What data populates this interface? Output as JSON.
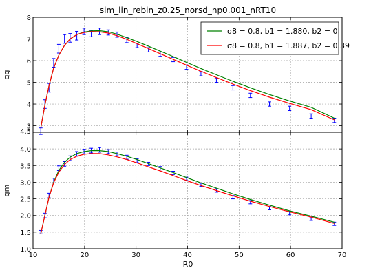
{
  "chart_data": {
    "type": "line",
    "title": "sim_lin_rebin_z0.25_norsd_np0.001_nRT10",
    "xlabel": "R0",
    "xlim": [
      10,
      70
    ],
    "x_ticks": [
      "10",
      "20",
      "30",
      "40",
      "50",
      "60",
      "70"
    ],
    "legend": {
      "placement": "top-right",
      "entries": [
        {
          "label": "σ8 = 0.8, b1 = 1.880, b2 = 0",
          "color": "#008000"
        },
        {
          "label": "σ8 = 0.8, b1 = 1.887, b2 = 0.39",
          "color": "#ff0000"
        }
      ]
    },
    "panels": [
      {
        "ylabel": "gg",
        "ylim": [
          2.7,
          8
        ],
        "y_ticks": [
          "3",
          "4",
          "5",
          "6",
          "7",
          "8"
        ],
        "grid": true,
        "errorbar_color": "#0000ff",
        "errorbars": [
          {
            "x": 11.5,
            "y": 2.75,
            "e": 0.15
          },
          {
            "x": 12.3,
            "y": 4.0,
            "e": 0.2
          },
          {
            "x": 13.1,
            "y": 4.75,
            "e": 0.2
          },
          {
            "x": 14.0,
            "y": 5.9,
            "e": 0.2
          },
          {
            "x": 15.0,
            "y": 6.55,
            "e": 0.2
          },
          {
            "x": 16.1,
            "y": 7.0,
            "e": 0.2
          },
          {
            "x": 17.2,
            "y": 7.05,
            "e": 0.2
          },
          {
            "x": 18.5,
            "y": 7.15,
            "e": 0.2
          },
          {
            "x": 19.9,
            "y": 7.35,
            "e": 0.15
          },
          {
            "x": 21.3,
            "y": 7.25,
            "e": 0.15
          },
          {
            "x": 22.9,
            "y": 7.35,
            "e": 0.15
          },
          {
            "x": 24.6,
            "y": 7.3,
            "e": 0.12
          },
          {
            "x": 26.3,
            "y": 7.2,
            "e": 0.12
          },
          {
            "x": 28.2,
            "y": 6.95,
            "e": 0.12
          },
          {
            "x": 30.2,
            "y": 6.7,
            "e": 0.1
          },
          {
            "x": 32.4,
            "y": 6.5,
            "e": 0.1
          },
          {
            "x": 34.7,
            "y": 6.3,
            "e": 0.1
          },
          {
            "x": 37.2,
            "y": 6.05,
            "e": 0.1
          },
          {
            "x": 39.8,
            "y": 5.7,
            "e": 0.1
          },
          {
            "x": 42.6,
            "y": 5.4,
            "e": 0.1
          },
          {
            "x": 45.6,
            "y": 5.1,
            "e": 0.1
          },
          {
            "x": 48.8,
            "y": 4.75,
            "e": 0.1
          },
          {
            "x": 52.2,
            "y": 4.4,
            "e": 0.1
          },
          {
            "x": 55.9,
            "y": 4.0,
            "e": 0.1
          },
          {
            "x": 59.8,
            "y": 3.8,
            "e": 0.1
          },
          {
            "x": 64.0,
            "y": 3.45,
            "e": 0.1
          },
          {
            "x": 68.5,
            "y": 3.25,
            "e": 0.1
          }
        ],
        "series": [
          {
            "color": "#008000",
            "x": [
              11.5,
              12.3,
              13.1,
              14.0,
              15.0,
              16.1,
              17.2,
              18.5,
              19.9,
              21.3,
              22.9,
              24.6,
              26.3,
              28.2,
              30.2,
              32.4,
              34.7,
              37.2,
              39.8,
              42.6,
              45.6,
              48.8,
              52.2,
              55.9,
              59.8,
              64.0,
              68.5
            ],
            "y": [
              2.9,
              3.95,
              4.85,
              5.65,
              6.25,
              6.7,
              7.0,
              7.2,
              7.32,
              7.37,
              7.38,
              7.33,
              7.22,
              7.06,
              6.88,
              6.67,
              6.44,
              6.19,
              5.92,
              5.64,
              5.35,
              5.05,
              4.75,
              4.44,
              4.14,
              3.85,
              3.35
            ]
          },
          {
            "color": "#ff0000",
            "x": [
              11.5,
              12.3,
              13.1,
              14.0,
              15.0,
              16.1,
              17.2,
              18.5,
              19.9,
              21.3,
              22.9,
              24.6,
              26.3,
              28.2,
              30.2,
              32.4,
              34.7,
              37.2,
              39.8,
              42.6,
              45.6,
              48.8,
              52.2,
              55.9,
              59.8,
              64.0,
              68.5
            ],
            "y": [
              2.9,
              3.95,
              4.85,
              5.65,
              6.25,
              6.7,
              7.0,
              7.2,
              7.3,
              7.34,
              7.33,
              7.27,
              7.15,
              6.98,
              6.78,
              6.56,
              6.32,
              6.06,
              5.79,
              5.51,
              5.22,
              4.92,
              4.62,
              4.32,
              4.03,
              3.74,
              3.27
            ]
          }
        ]
      },
      {
        "ylabel": "gm",
        "ylim": [
          1.0,
          4.5
        ],
        "y_ticks": [
          "1.0",
          "1.5",
          "2.0",
          "2.5",
          "3.0",
          "3.5",
          "4.0",
          "4.5"
        ],
        "grid": true,
        "errorbar_color": "#0000ff",
        "errorbars": [
          {
            "x": 11.5,
            "y": 1.5,
            "e": 0.05
          },
          {
            "x": 12.3,
            "y": 2.0,
            "e": 0.07
          },
          {
            "x": 13.1,
            "y": 2.6,
            "e": 0.07
          },
          {
            "x": 14.0,
            "y": 3.05,
            "e": 0.07
          },
          {
            "x": 15.0,
            "y": 3.42,
            "e": 0.07
          },
          {
            "x": 16.1,
            "y": 3.55,
            "e": 0.07
          },
          {
            "x": 17.2,
            "y": 3.72,
            "e": 0.07
          },
          {
            "x": 18.5,
            "y": 3.85,
            "e": 0.07
          },
          {
            "x": 19.9,
            "y": 3.92,
            "e": 0.07
          },
          {
            "x": 21.3,
            "y": 3.95,
            "e": 0.07
          },
          {
            "x": 22.9,
            "y": 3.97,
            "e": 0.07
          },
          {
            "x": 24.6,
            "y": 3.92,
            "e": 0.06
          },
          {
            "x": 26.3,
            "y": 3.85,
            "e": 0.06
          },
          {
            "x": 28.2,
            "y": 3.75,
            "e": 0.06
          },
          {
            "x": 30.2,
            "y": 3.65,
            "e": 0.06
          },
          {
            "x": 32.4,
            "y": 3.55,
            "e": 0.05
          },
          {
            "x": 34.7,
            "y": 3.42,
            "e": 0.05
          },
          {
            "x": 37.2,
            "y": 3.28,
            "e": 0.05
          },
          {
            "x": 39.8,
            "y": 3.1,
            "e": 0.05
          },
          {
            "x": 42.6,
            "y": 2.92,
            "e": 0.05
          },
          {
            "x": 45.6,
            "y": 2.75,
            "e": 0.05
          },
          {
            "x": 48.8,
            "y": 2.55,
            "e": 0.05
          },
          {
            "x": 52.2,
            "y": 2.4,
            "e": 0.05
          },
          {
            "x": 55.9,
            "y": 2.22,
            "e": 0.05
          },
          {
            "x": 59.8,
            "y": 2.07,
            "e": 0.05
          },
          {
            "x": 64.0,
            "y": 1.9,
            "e": 0.05
          },
          {
            "x": 68.5,
            "y": 1.75,
            "e": 0.05
          }
        ],
        "series": [
          {
            "color": "#008000",
            "x": [
              11.5,
              12.3,
              13.1,
              14.0,
              15.0,
              16.1,
              17.2,
              18.5,
              19.9,
              21.3,
              22.9,
              24.6,
              26.3,
              28.2,
              30.2,
              32.4,
              34.7,
              37.2,
              39.8,
              42.6,
              45.6,
              48.8,
              52.2,
              55.9,
              59.8,
              64.0,
              68.5
            ],
            "y": [
              1.45,
              2.0,
              2.55,
              3.0,
              3.35,
              3.6,
              3.75,
              3.86,
              3.92,
              3.95,
              3.95,
              3.92,
              3.86,
              3.78,
              3.68,
              3.56,
              3.43,
              3.29,
              3.14,
              2.98,
              2.82,
              2.65,
              2.48,
              2.31,
              2.14,
              1.98,
              1.8
            ]
          },
          {
            "color": "#ff0000",
            "x": [
              11.5,
              12.3,
              13.1,
              14.0,
              15.0,
              16.1,
              17.2,
              18.5,
              19.9,
              21.3,
              22.9,
              24.6,
              26.3,
              28.2,
              30.2,
              32.4,
              34.7,
              37.2,
              39.8,
              42.6,
              45.6,
              48.8,
              52.2,
              55.9,
              59.8,
              64.0,
              68.5
            ],
            "y": [
              1.45,
              2.0,
              2.55,
              2.98,
              3.3,
              3.53,
              3.68,
              3.78,
              3.84,
              3.86,
              3.86,
              3.82,
              3.76,
              3.68,
              3.58,
              3.46,
              3.34,
              3.2,
              3.05,
              2.9,
              2.75,
              2.59,
              2.43,
              2.27,
              2.11,
              1.95,
              1.76
            ]
          }
        ]
      }
    ]
  }
}
